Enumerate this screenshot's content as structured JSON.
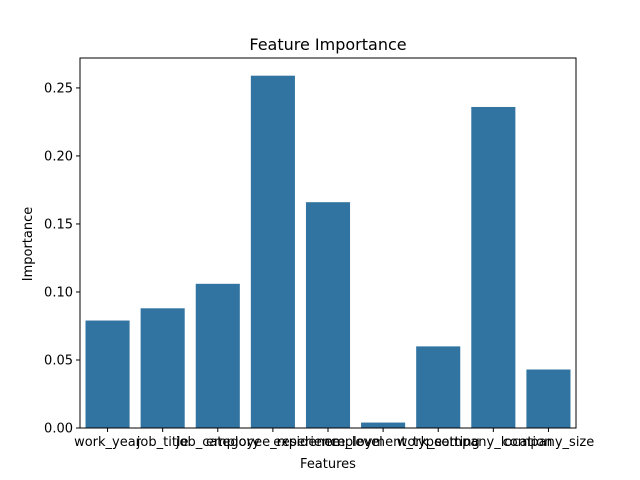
{
  "chart_data": {
    "type": "bar",
    "title": "Feature Importance",
    "xlabel": "Features",
    "ylabel": "Importance",
    "categories": [
      "work_year",
      "job_title",
      "job_category",
      "employee_residence",
      "experience_level",
      "employment_type",
      "work_setting",
      "company_location",
      "company_size"
    ],
    "values": [
      0.079,
      0.088,
      0.106,
      0.259,
      0.166,
      0.004,
      0.06,
      0.236,
      0.043
    ],
    "ylim": [
      0,
      0.272
    ],
    "yticks": [
      0.0,
      0.05,
      0.1,
      0.15,
      0.2,
      0.25
    ],
    "ytick_labels": [
      "0.00",
      "0.05",
      "0.10",
      "0.15",
      "0.20",
      "0.25"
    ],
    "grid": false,
    "bar_color": "#3274a1"
  }
}
